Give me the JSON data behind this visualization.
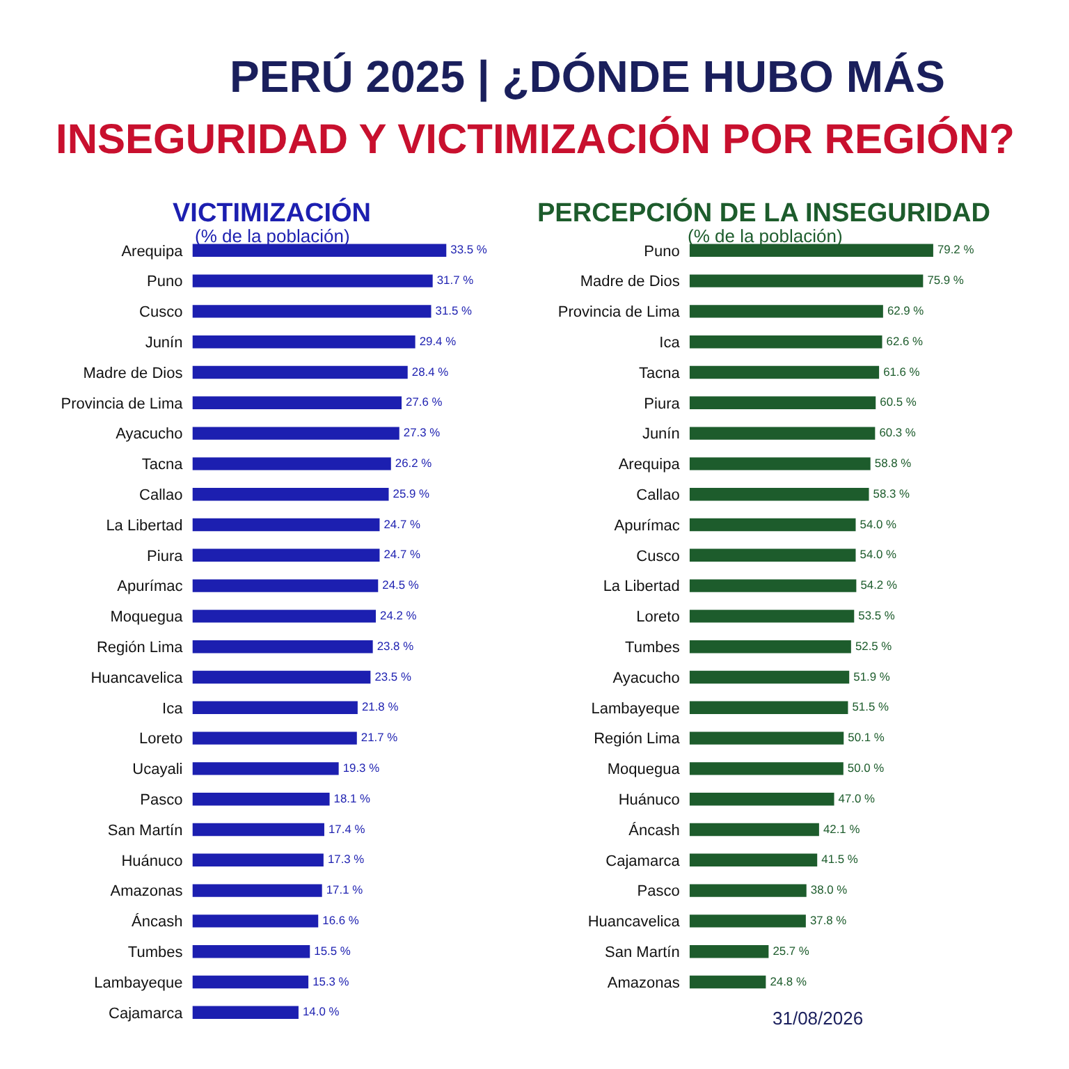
{
  "chart_data": [
    {
      "type": "bar",
      "orientation": "horizontal",
      "title": "VICTIMIZACIÓN",
      "subtitle": "(% de la población)",
      "color": "#1c1fb0",
      "tick_labels": "y",
      "annotations": [
        "PERÚ 2025 | ¿DÓNDE HUBO MÁS",
        "INSEGURIDAD Y VICTIMIZACIÓN POR REGIÓN?"
      ],
      "categories": [
        "Arequipa",
        "Puno",
        "Cusco",
        "Junín",
        "Madre de Dios",
        "Provincia de Lima",
        "Ayacucho",
        "Tacna",
        "Callao",
        "La Libertad",
        "Piura",
        "Apurímac",
        "Moquegua",
        "Región Lima",
        "Huancavelica",
        "Ica",
        "Loreto",
        "Ucayali",
        "Pasco",
        "San Martín",
        "Huánuco",
        "Amazonas",
        "Áncash",
        "Tumbes",
        "Lambayeque",
        "Cajamarca"
      ],
      "values": [
        33.5,
        31.7,
        31.5,
        29.4,
        28.4,
        27.6,
        27.3,
        26.2,
        25.9,
        24.7,
        24.7,
        24.5,
        24.2,
        23.8,
        23.5,
        21.8,
        21.7,
        19.3,
        18.1,
        17.4,
        17.3,
        17.1,
        16.6,
        15.5,
        15.3,
        14.0
      ],
      "value_labels": [
        "33.5 %",
        "31.7 %",
        "31.5 %",
        "29.4 %",
        "28.4 %",
        "27.6 %",
        "27.3 %",
        "26.2 %",
        "25.9 %",
        "24.7 %",
        "24.7 %",
        "24.5 %",
        "24.2 %",
        "23.8 %",
        "23.5 %",
        "21.8 %",
        "21.7 %",
        "19.3 %",
        "18.1 %",
        "17.4 %",
        "17.3 %",
        "17.1 %",
        "16.6 %",
        "15.5 %",
        "15.3 %",
        "14.0 %"
      ]
    },
    {
      "type": "bar",
      "orientation": "horizontal",
      "title": "PERCEPCIÓN DE LA INSEGURIDAD",
      "subtitle": "(% de la población)",
      "color": "#1d5c2c",
      "tick_labels": "y",
      "annotations": [
        "31/08/2026"
      ],
      "categories": [
        "Puno",
        "Madre de Dios",
        "Provincia de Lima",
        "Ica",
        "Tacna",
        "Piura",
        "Junín",
        "Arequipa",
        "Callao",
        "Apurímac",
        "Cusco",
        "La Libertad",
        "Loreto",
        "Tumbes",
        "Ayacucho",
        "Lambayeque",
        "Región Lima",
        "Moquegua",
        "Huánuco",
        "Áncash",
        "Cajamarca",
        "Pasco",
        "Huancavelica",
        "San Martín",
        "Amazonas"
      ],
      "values": [
        79.2,
        75.9,
        62.9,
        62.6,
        61.6,
        60.5,
        60.3,
        58.8,
        58.3,
        54.0,
        54.0,
        54.2,
        53.5,
        52.5,
        51.9,
        51.5,
        50.1,
        50.0,
        47.0,
        42.1,
        41.5,
        38.0,
        37.8,
        25.7,
        24.8
      ],
      "value_labels": [
        "79.2 %",
        "75.9 %",
        "62.9 %",
        "62.6 %",
        "61.6 %",
        "60.5 %",
        "60.3 %",
        "58.8 %",
        "58.3 %",
        "54.0 %",
        "54.0 %",
        "54.2 %",
        "53.5 %",
        "52.5 %",
        "51.9 %",
        "51.5 %",
        "50.1 %",
        "50.0 %",
        "47.0 %",
        "42.1 %",
        "41.5 %",
        "38.0 %",
        "37.8 %",
        "25.7 %",
        "24.8 %"
      ]
    }
  ]
}
